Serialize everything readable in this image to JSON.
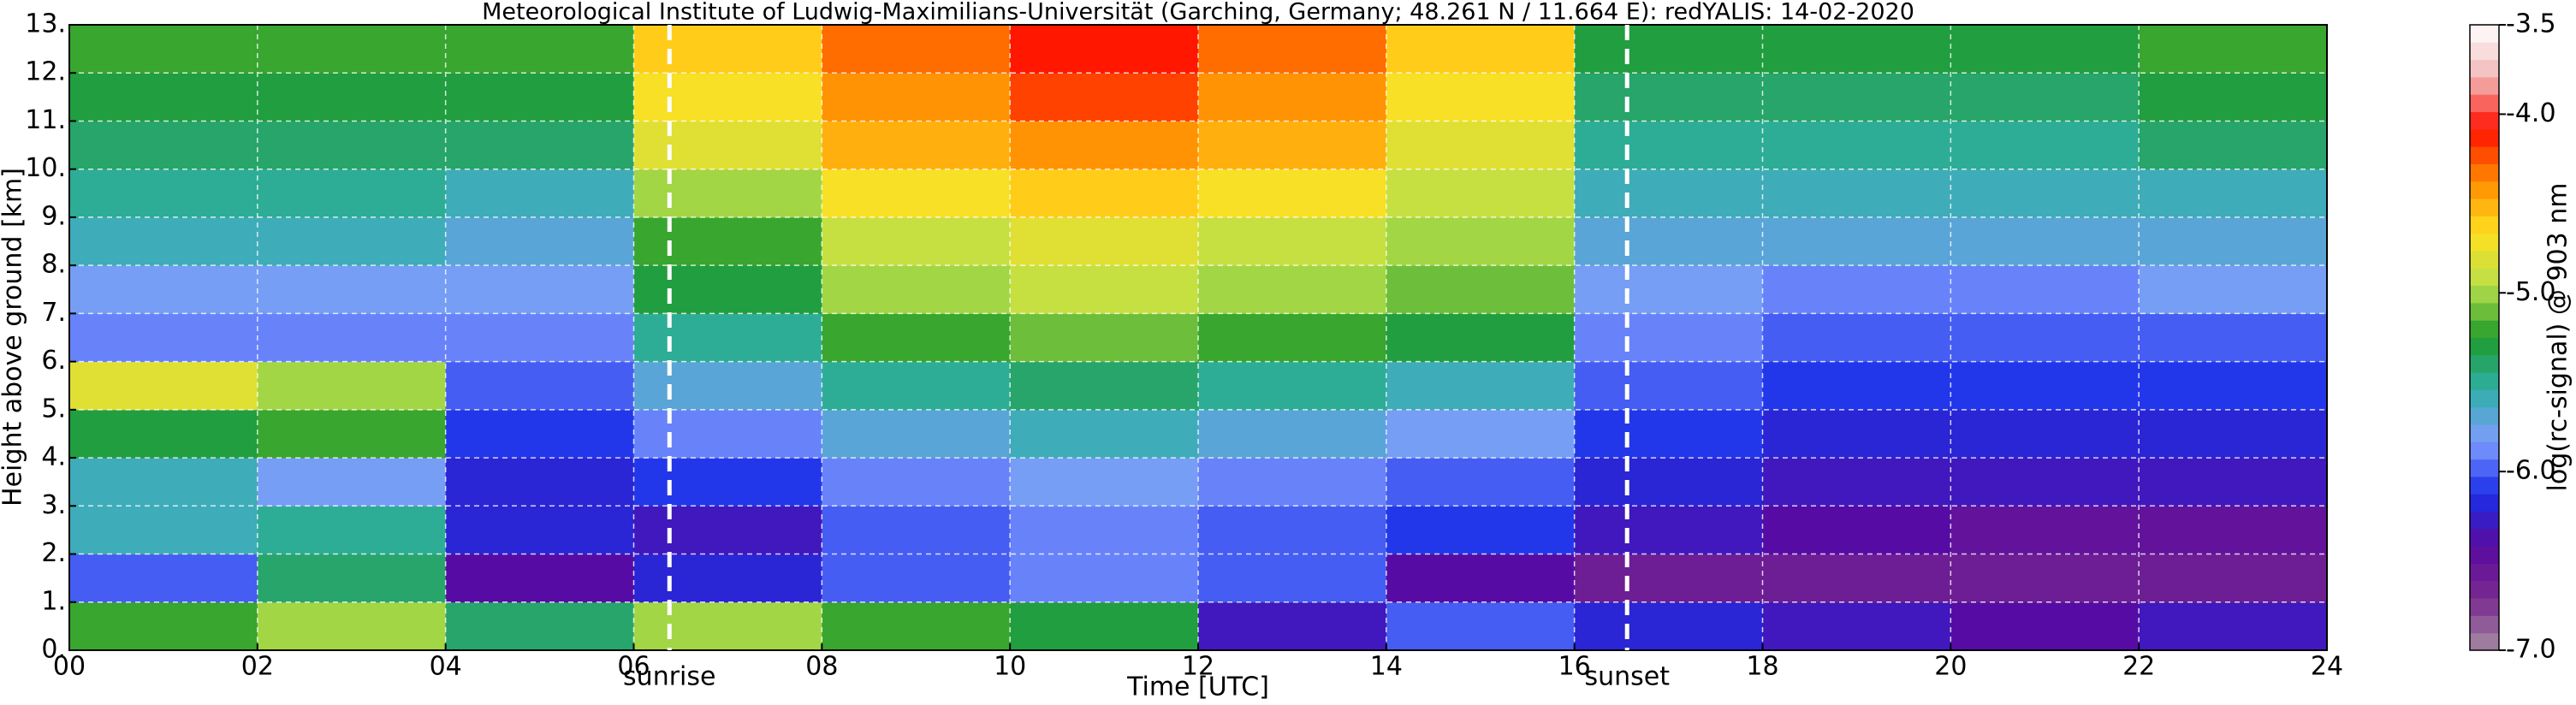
{
  "chart_data": {
    "type": "heatmap",
    "title": "Meteorological Institute of Ludwig-Maximilians-Universität (Garching, Germany; 48.261 N / 11.664 E):    redYALIS: 14-02-2020",
    "x_label": "Time [UTC]",
    "y_label": "Height above ground [km]",
    "colorbar_label": "log(rc-signal) @ 903 nm",
    "x": [
      0,
      2,
      4,
      6,
      8,
      10,
      12,
      14,
      16,
      18,
      20,
      22,
      24
    ],
    "y": [
      0,
      1,
      2,
      3,
      4,
      5,
      6,
      7,
      8,
      9,
      10,
      11,
      12,
      13
    ],
    "z": [
      [
        -5.2,
        -5.0,
        -5.4,
        -5.0,
        -5.2,
        -5.3,
        -6.3,
        -6.0,
        -6.2,
        -6.3,
        -6.4,
        -6.3
      ],
      [
        -6.0,
        -5.4,
        -6.4,
        -6.2,
        -6.0,
        -5.9,
        -6.0,
        -6.4,
        -6.6,
        -6.6,
        -6.6,
        -6.6
      ],
      [
        -5.6,
        -5.5,
        -6.2,
        -6.3,
        -6.0,
        -5.9,
        -6.0,
        -6.1,
        -6.3,
        -6.4,
        -6.5,
        -6.5
      ],
      [
        -5.6,
        -5.8,
        -6.2,
        -6.1,
        -5.9,
        -5.8,
        -5.9,
        -6.0,
        -6.2,
        -6.3,
        -6.3,
        -6.3
      ],
      [
        -5.3,
        -5.2,
        -6.1,
        -5.9,
        -5.7,
        -5.6,
        -5.7,
        -5.8,
        -6.1,
        -6.2,
        -6.2,
        -6.2
      ],
      [
        -4.8,
        -5.0,
        -6.0,
        -5.7,
        -5.5,
        -5.4,
        -5.5,
        -5.6,
        -6.0,
        -6.1,
        -6.1,
        -6.1
      ],
      [
        -5.9,
        -5.9,
        -5.9,
        -5.5,
        -5.2,
        -5.1,
        -5.2,
        -5.3,
        -5.9,
        -6.0,
        -6.0,
        -6.0
      ],
      [
        -5.8,
        -5.8,
        -5.8,
        -5.3,
        -5.0,
        -4.9,
        -5.0,
        -5.1,
        -5.8,
        -5.9,
        -5.9,
        -5.8
      ],
      [
        -5.6,
        -5.6,
        -5.7,
        -5.2,
        -4.9,
        -4.8,
        -4.9,
        -5.0,
        -5.7,
        -5.7,
        -5.7,
        -5.7
      ],
      [
        -5.5,
        -5.5,
        -5.6,
        -5.0,
        -4.7,
        -4.6,
        -4.7,
        -4.9,
        -5.6,
        -5.6,
        -5.6,
        -5.6
      ],
      [
        -5.4,
        -5.4,
        -5.4,
        -4.8,
        -4.5,
        -4.4,
        -4.5,
        -4.8,
        -5.5,
        -5.5,
        -5.5,
        -5.4
      ],
      [
        -5.3,
        -5.3,
        -5.3,
        -4.7,
        -4.4,
        -4.2,
        -4.4,
        -4.7,
        -5.4,
        -5.4,
        -5.4,
        -5.3
      ],
      [
        -5.2,
        -5.2,
        -5.2,
        -4.6,
        -4.3,
        -4.1,
        -4.3,
        -4.6,
        -5.3,
        -5.3,
        -5.3,
        -5.2
      ]
    ],
    "xlim": [
      0,
      24
    ],
    "ylim": [
      0,
      13
    ],
    "clim": [
      -7,
      -3.5
    ],
    "xticks": [
      {
        "value": 0,
        "label": "00"
      },
      {
        "value": 2,
        "label": "02"
      },
      {
        "value": 4,
        "label": "04"
      },
      {
        "value": 6,
        "label": "06"
      },
      {
        "value": 8,
        "label": "08"
      },
      {
        "value": 10,
        "label": "10"
      },
      {
        "value": 12,
        "label": "12"
      },
      {
        "value": 14,
        "label": "14"
      },
      {
        "value": 16,
        "label": "16"
      },
      {
        "value": 18,
        "label": "18"
      },
      {
        "value": 20,
        "label": "20"
      },
      {
        "value": 22,
        "label": "22"
      },
      {
        "value": 24,
        "label": "24"
      }
    ],
    "yticks": [
      {
        "value": 0,
        "label": "0."
      },
      {
        "value": 1,
        "label": "1."
      },
      {
        "value": 2,
        "label": "2."
      },
      {
        "value": 3,
        "label": "3."
      },
      {
        "value": 4,
        "label": "4."
      },
      {
        "value": 5,
        "label": "5."
      },
      {
        "value": 6,
        "label": "6."
      },
      {
        "value": 7,
        "label": "7."
      },
      {
        "value": 8,
        "label": "8."
      },
      {
        "value": 9,
        "label": "9."
      },
      {
        "value": 10,
        "label": "10."
      },
      {
        "value": 11,
        "label": "11."
      },
      {
        "value": 12,
        "label": "12."
      },
      {
        "value": 13,
        "label": "13."
      }
    ],
    "cticks": [
      -3.5,
      {
        "value": -4,
        "label": "-4.0"
      },
      {
        "value": -5,
        "label": "-5.0"
      },
      {
        "value": -6,
        "label": "-6.0"
      },
      {
        "value": -7,
        "label": "-7.0"
      }
    ],
    "colormap": [
      "#a48ca4",
      "#7a2a8e",
      "#5a0aa0",
      "#1a2ee8",
      "#7f9cff",
      "#2fb0a8",
      "#1e9a2a",
      "#b8e04a",
      "#ffe020",
      "#ff8c00",
      "#ff1000",
      "#f2b8b8",
      "#ffffff"
    ],
    "grid": true,
    "annotations": [
      {
        "x": 6.38,
        "label": "sunrise"
      },
      {
        "x": 16.56,
        "label": "sunset"
      }
    ]
  }
}
